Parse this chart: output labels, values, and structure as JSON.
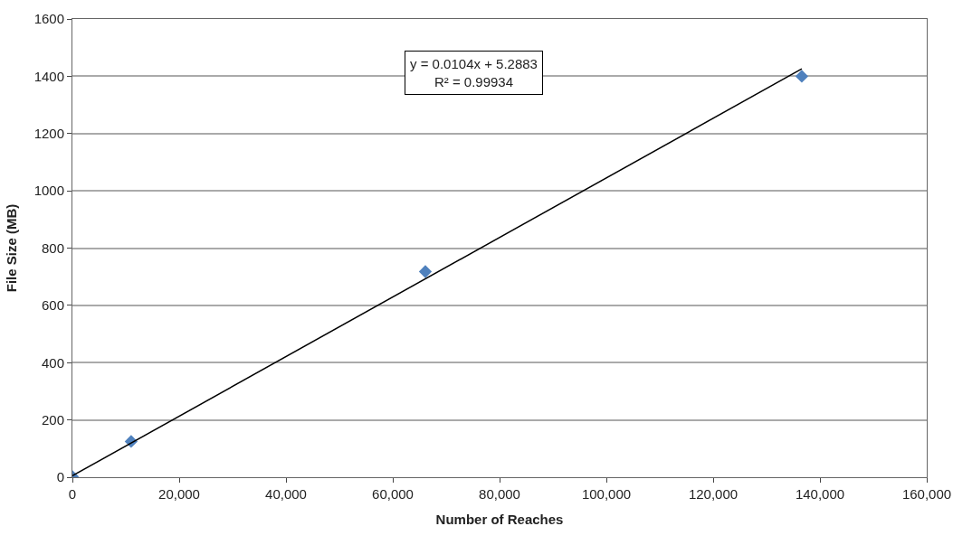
{
  "chart_data": {
    "type": "scatter",
    "xlabel": "Number of Reaches",
    "ylabel": "File Size (MB)",
    "series": [
      {
        "color": "#4f81bd",
        "marker": "diamond",
        "x": [
          0,
          11000,
          66100,
          136600
        ],
        "values": [
          2,
          125,
          718,
          1400
        ]
      },
      {
        "type": "line",
        "color": "#000000",
        "marker": "none",
        "x": [
          0,
          136600
        ],
        "values": [
          5,
          1426
        ]
      }
    ],
    "annotations": [
      "y = 0.0104x + 5.2883\nR² = 0.99934"
    ],
    "xlim": [
      0,
      160000
    ],
    "xticks": [
      {
        "value": 0,
        "label": "0"
      },
      {
        "value": 20000,
        "label": "20,000"
      },
      {
        "value": 40000,
        "label": "40,000"
      },
      {
        "value": 60000,
        "label": "60,000"
      },
      {
        "value": 80000,
        "label": "80,000"
      },
      {
        "value": 100000,
        "label": "100,000"
      },
      {
        "value": 120000,
        "label": "120,000"
      },
      {
        "value": 140000,
        "label": "140,000"
      },
      {
        "value": 160000,
        "label": "160,000"
      }
    ],
    "ylim": [
      0,
      1600
    ],
    "yticks": [
      0,
      200,
      400,
      600,
      800,
      1000,
      1200,
      1400,
      1600
    ],
    "grid": "y",
    "legend": false
  }
}
